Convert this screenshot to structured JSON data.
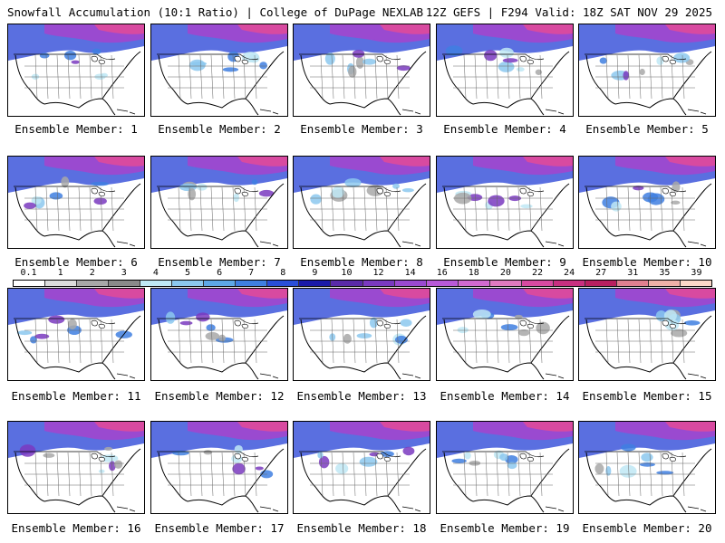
{
  "header": {
    "title_left": "Snowfall Accumulation (10:1 Ratio) | College of DuPage NEXLAB",
    "title_right": "12Z GEFS | F294 Valid: 18Z SAT NOV 29 2025"
  },
  "colorbar": {
    "ticks": [
      "0.1",
      "1",
      "2",
      "3",
      "4",
      "5",
      "6",
      "7",
      "8",
      "9",
      "10",
      "12",
      "14",
      "16",
      "18",
      "20",
      "22",
      "24",
      "27",
      "31",
      "35",
      "39"
    ],
    "colors": [
      "#ffffff",
      "#dcdcdc",
      "#a8a8a8",
      "#8a8a8a",
      "#bfe8f5",
      "#8cc8ee",
      "#5ea8e6",
      "#3f7fe0",
      "#2a4fd8",
      "#1a1aa8",
      "#5a2aa8",
      "#7a3ac0",
      "#9a4ad0",
      "#b85ad8",
      "#d06ad0",
      "#e07ac0",
      "#d84aa0",
      "#c83080",
      "#b82060",
      "#e08090",
      "#f0b0a8",
      "#fbd8c8"
    ]
  },
  "members": [
    {
      "label": "Ensemble Member: 1"
    },
    {
      "label": "Ensemble Member: 2"
    },
    {
      "label": "Ensemble Member: 3"
    },
    {
      "label": "Ensemble Member: 4"
    },
    {
      "label": "Ensemble Member: 5"
    },
    {
      "label": "Ensemble Member: 6"
    },
    {
      "label": "Ensemble Member: 7"
    },
    {
      "label": "Ensemble Member: 8"
    },
    {
      "label": "Ensemble Member: 9"
    },
    {
      "label": "Ensemble Member: 10"
    },
    {
      "label": "Ensemble Member: 11"
    },
    {
      "label": "Ensemble Member: 12"
    },
    {
      "label": "Ensemble Member: 13"
    },
    {
      "label": "Ensemble Member: 14"
    },
    {
      "label": "Ensemble Member: 15"
    },
    {
      "label": "Ensemble Member: 16"
    },
    {
      "label": "Ensemble Member: 17"
    },
    {
      "label": "Ensemble Member: 18"
    },
    {
      "label": "Ensemble Member: 19"
    },
    {
      "label": "Ensemble Member: 20"
    }
  ]
}
